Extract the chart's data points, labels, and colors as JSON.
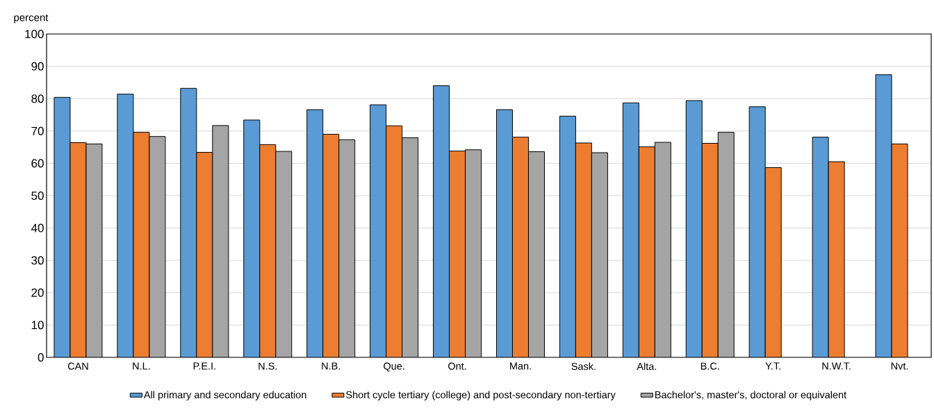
{
  "chart_data": {
    "type": "bar",
    "ylabel": "percent",
    "categories": [
      "CAN",
      "N.L.",
      "P.E.I.",
      "N.S.",
      "N.B.",
      "Que.",
      "Ont.",
      "Man.",
      "Sask.",
      "Alta.",
      "B.C.",
      "Y.T.",
      "N.W.T.",
      "Nvt."
    ],
    "series": [
      {
        "name": "All primary and secondary education",
        "color": "#5b9bd5",
        "values": [
          80.4,
          81.4,
          83.2,
          73.4,
          76.6,
          78.1,
          84.0,
          76.6,
          74.6,
          78.7,
          79.4,
          77.5,
          68.1,
          87.4
        ]
      },
      {
        "name": "Short cycle tertiary (college) and post-secondary non-tertiary",
        "color": "#ed7d31",
        "values": [
          66.4,
          69.6,
          63.4,
          65.8,
          69.0,
          71.6,
          63.8,
          68.1,
          66.3,
          65.1,
          66.2,
          58.7,
          60.5,
          66.0
        ]
      },
      {
        "name": "Bachelor's, master's, doctoral or equivalent",
        "color": "#a5a5a5",
        "values": [
          66.0,
          68.3,
          71.7,
          63.7,
          67.3,
          67.9,
          64.2,
          63.6,
          63.3,
          66.5,
          69.6,
          null,
          null,
          null
        ]
      }
    ],
    "ylim": [
      0,
      100
    ],
    "yticks": [
      0,
      10,
      20,
      30,
      40,
      50,
      60,
      70,
      80,
      90,
      100
    ],
    "grid": "y",
    "legend": "bottom"
  }
}
